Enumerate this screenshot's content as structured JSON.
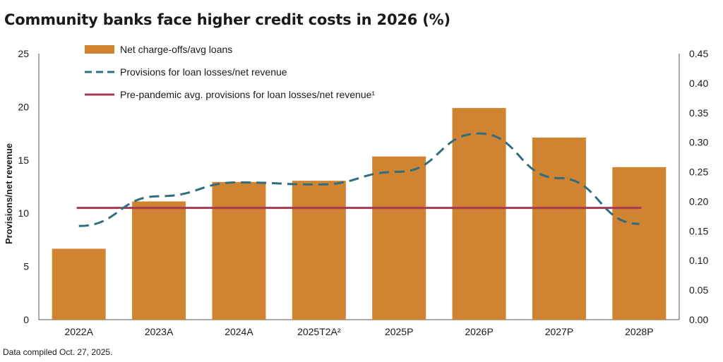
{
  "title": "Community banks face higher credit costs in 2026 (%)",
  "footnote": "Data compiled Oct. 27, 2025.",
  "colors": {
    "bars": "#D08432",
    "provisions_line": "#2E6E80",
    "prepandemic_line": "#A63A55",
    "axis": "#555555",
    "text": "#1a1a1a"
  },
  "chart_data": {
    "type": "bar",
    "categories": [
      "2022A",
      "2023A",
      "2024A",
      "2025T2A²",
      "2025P",
      "2026P",
      "2027P",
      "2028P"
    ],
    "ylabel_left": "Provisions/net revenue",
    "ylabel_right": "Net charge-offs/avg loans",
    "ylim_left": [
      0,
      25
    ],
    "ylim_right": [
      0,
      0.45
    ],
    "yticks_left": [
      "0",
      "5",
      "10",
      "15",
      "20",
      "25"
    ],
    "yticks_right": [
      "0.00",
      "0.05",
      "0.10",
      "0.15",
      "0.20",
      "0.25",
      "0.30",
      "0.35",
      "0.40",
      "0.45"
    ],
    "legend_position": "top-left",
    "grid": false,
    "series": [
      {
        "name": "Net charge-offs/avg loans",
        "kind": "bar",
        "axis": "right",
        "values": [
          0.12,
          0.2,
          0.233,
          0.235,
          0.276,
          0.358,
          0.308,
          0.258
        ]
      },
      {
        "name": "Provisions for loan losses/net revenue",
        "kind": "line-dashed",
        "axis": "left",
        "values": [
          8.8,
          11.6,
          12.9,
          12.7,
          13.9,
          17.5,
          13.3,
          9.0
        ]
      },
      {
        "name": "Pre-pandemic avg. provisions for loan losses/net revenue¹",
        "kind": "line-flat",
        "axis": "left",
        "values": [
          10.5,
          10.5,
          10.5,
          10.5,
          10.5,
          10.5,
          10.5,
          10.5
        ]
      }
    ]
  }
}
